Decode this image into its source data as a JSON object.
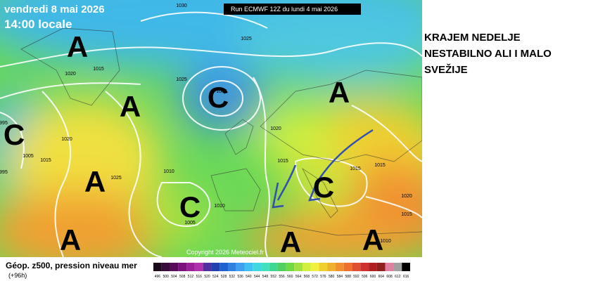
{
  "header": {
    "date": "vendredi 8 mai 2026",
    "time": "14:00 locale",
    "run": "Run ECMWF 12Z du lundi 4 mai 2026"
  },
  "annotation": [
    "KRAJEM NEDELJE",
    "NESTABILNO ALI I MALO",
    "SVEŽIJE"
  ],
  "map": {
    "systems": [
      "A",
      "A",
      "A",
      "A",
      "A",
      "A",
      "A",
      "C",
      "C",
      "C",
      "C"
    ],
    "isobar_labels": [
      "1030",
      "1025",
      "1020",
      "1015",
      "1025",
      "1005",
      "1020",
      "1020",
      "1015",
      "1010",
      "1025",
      "1015",
      "1015",
      "1015",
      "1020",
      "1015",
      "1010",
      "1005",
      "1010",
      "995",
      "995",
      "1005"
    ],
    "copyright": "Copyright 2026 Meteociel.fr"
  },
  "footer": {
    "title": "Géop. z500, pression niveau mer",
    "step": "(+96h)"
  },
  "scale": {
    "labels": [
      "496",
      "500",
      "504",
      "508",
      "512",
      "516",
      "520",
      "524",
      "528",
      "532",
      "536",
      "540",
      "544",
      "548",
      "552",
      "556",
      "560",
      "564",
      "568",
      "572",
      "576",
      "580",
      "584",
      "588",
      "592",
      "596",
      "600",
      "604",
      "608",
      "612",
      "616"
    ],
    "colors": [
      "#1a0a1a",
      "#3a0a3a",
      "#5a0a5a",
      "#7a107a",
      "#9a209a",
      "#b030b0",
      "#5030a0",
      "#2040b0",
      "#2060d0",
      "#3080e0",
      "#40a0f0",
      "#40c0f0",
      "#40d8e0",
      "#40e0c0",
      "#40d890",
      "#50d060",
      "#70d840",
      "#a0e040",
      "#d0f040",
      "#f0f040",
      "#f0d030",
      "#f0b030",
      "#f09030",
      "#f07030",
      "#e05030",
      "#d03030",
      "#b02020",
      "#902020",
      "#e080a0",
      "#a0a0a0",
      "#000000"
    ]
  }
}
